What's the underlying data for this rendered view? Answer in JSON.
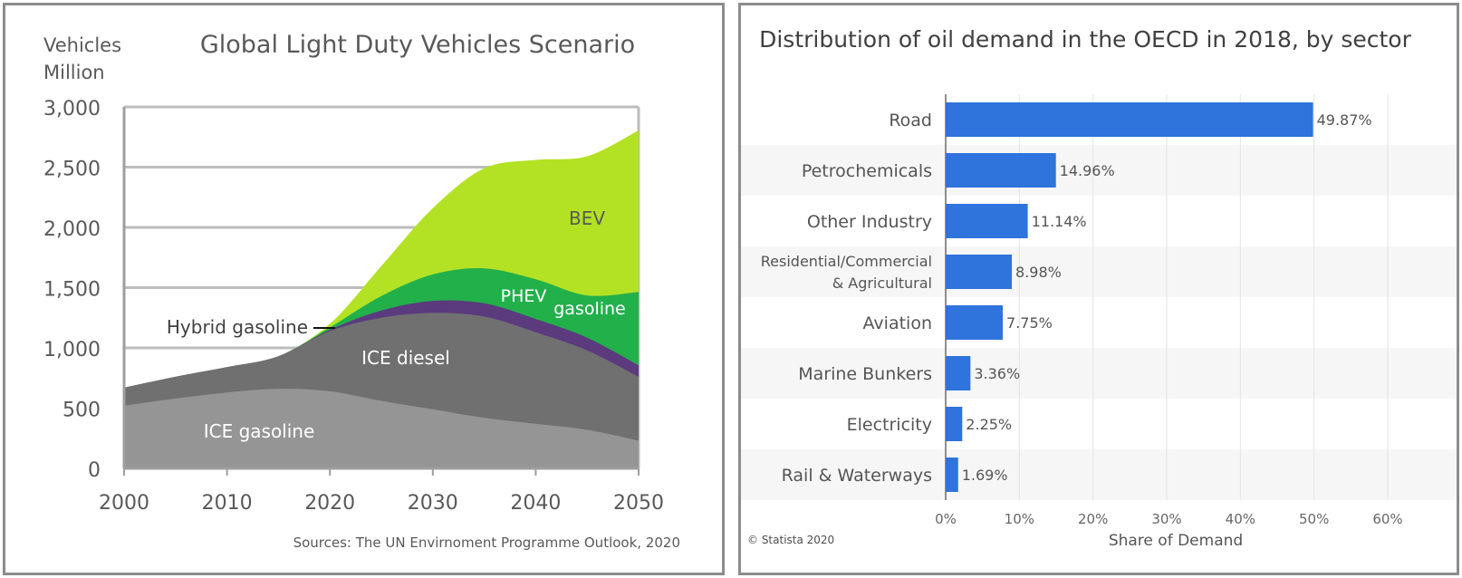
{
  "chart_data": [
    {
      "type": "area",
      "title": "Global Light Duty Vehicles Scenario",
      "ylabel_line1": "Vehicles",
      "ylabel_line2": "Million",
      "ylim": [
        0,
        3000
      ],
      "xlim": [
        2000,
        2050
      ],
      "yticks": [
        0,
        500,
        1000,
        1500,
        2000,
        2500,
        3000
      ],
      "ytick_labels": [
        "0",
        "500",
        "1,000",
        "1,500",
        "2,000",
        "2,500",
        "3,000"
      ],
      "xticks": [
        2000,
        2010,
        2020,
        2030,
        2040,
        2050
      ],
      "xtick_labels": [
        "2000",
        "2010",
        "2020",
        "2030",
        "2040",
        "2050"
      ],
      "x": [
        2000,
        2005,
        2010,
        2015,
        2020,
        2025,
        2030,
        2035,
        2040,
        2045,
        2050
      ],
      "series": [
        {
          "name": "ICE gasoline",
          "label": "ICE gasoline",
          "color": "#959595",
          "values": [
            520,
            580,
            630,
            660,
            640,
            560,
            490,
            420,
            370,
            320,
            230
          ]
        },
        {
          "name": "ICE diesel",
          "label": "ICE diesel",
          "color": "#707070",
          "values": [
            150,
            180,
            210,
            270,
            500,
            690,
            800,
            840,
            760,
            660,
            530
          ]
        },
        {
          "name": "Hybrid gasoline",
          "label": "Hybrid gasoline",
          "color": "#5b3a7e",
          "values": [
            0,
            0,
            0,
            0,
            10,
            60,
            100,
            110,
            110,
            105,
            95
          ]
        },
        {
          "name": "PHEV gasoline",
          "label_line1": "PHEV",
          "label_line2": "gasoline",
          "color": "#22b04b",
          "values": [
            0,
            0,
            0,
            0,
            20,
            120,
            220,
            290,
            330,
            350,
            610
          ]
        },
        {
          "name": "BEV",
          "label": "BEV",
          "color": "#b3e224",
          "values": [
            0,
            0,
            0,
            0,
            30,
            250,
            550,
            830,
            990,
            1155,
            1340
          ]
        }
      ],
      "source": "Sources: The UN Envirnoment Programme Outlook, 2020"
    },
    {
      "type": "bar",
      "orientation": "horizontal",
      "title": "Distribution of oil demand in the OECD in 2018, by sector",
      "xlabel": "Share of Demand",
      "xlim": [
        0,
        60
      ],
      "xticks": [
        0,
        10,
        20,
        30,
        40,
        50,
        60
      ],
      "xtick_labels": [
        "0%",
        "10%",
        "20%",
        "30%",
        "40%",
        "50%",
        "60%"
      ],
      "categories": [
        [
          "Road"
        ],
        [
          "Petrochemicals"
        ],
        [
          "Other Industry"
        ],
        [
          "Residential/Commercial",
          "& Agricultural"
        ],
        [
          "Aviation"
        ],
        [
          "Marine Bunkers"
        ],
        [
          "Electricity"
        ],
        [
          "Rail & Waterways"
        ]
      ],
      "values": [
        49.87,
        14.96,
        11.14,
        8.98,
        7.75,
        3.36,
        2.25,
        1.69
      ],
      "value_labels": [
        "49.87%",
        "14.96%",
        "11.14%",
        "8.98%",
        "7.75%",
        "3.36%",
        "2.25%",
        "1.69%"
      ],
      "bar_color": "#2f73dc",
      "credit": "© Statista 2020"
    }
  ]
}
